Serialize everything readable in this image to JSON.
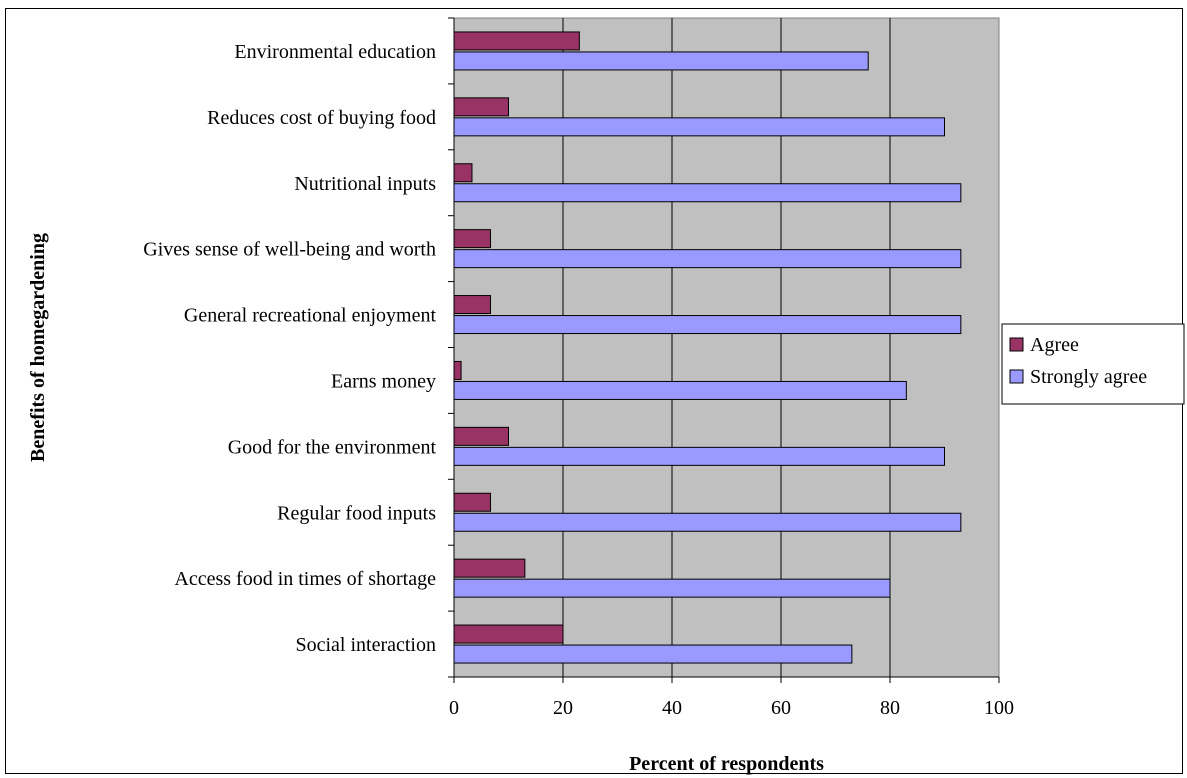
{
  "chart_data": {
    "type": "bar",
    "orientation": "horizontal",
    "title": "",
    "xlabel": "Percent of respondents",
    "ylabel": "Benefits of homegardening",
    "xlim": [
      0,
      100
    ],
    "x_ticks": [
      "0",
      "20",
      "40",
      "60",
      "80",
      "100"
    ],
    "categories": [
      "Environmental education",
      "Reduces cost of buying food",
      "Nutritional inputs",
      "Gives sense of well-being and worth",
      "General recreational enjoyment",
      "Earns money",
      "Good for the environment",
      "Regular food inputs",
      "Access food in times of shortage",
      "Social interaction"
    ],
    "series": [
      {
        "name": "Agree",
        "color": "#993366",
        "values": [
          23,
          10,
          3.3,
          6.7,
          6.7,
          1.3,
          10,
          6.7,
          13,
          20
        ]
      },
      {
        "name": "Strongly agree",
        "color": "#9999ff",
        "values": [
          76,
          90,
          93,
          93,
          93,
          83,
          90,
          93,
          80,
          73
        ]
      }
    ],
    "plot_background": "#c0c0c0",
    "grid": true,
    "legend": "right"
  }
}
